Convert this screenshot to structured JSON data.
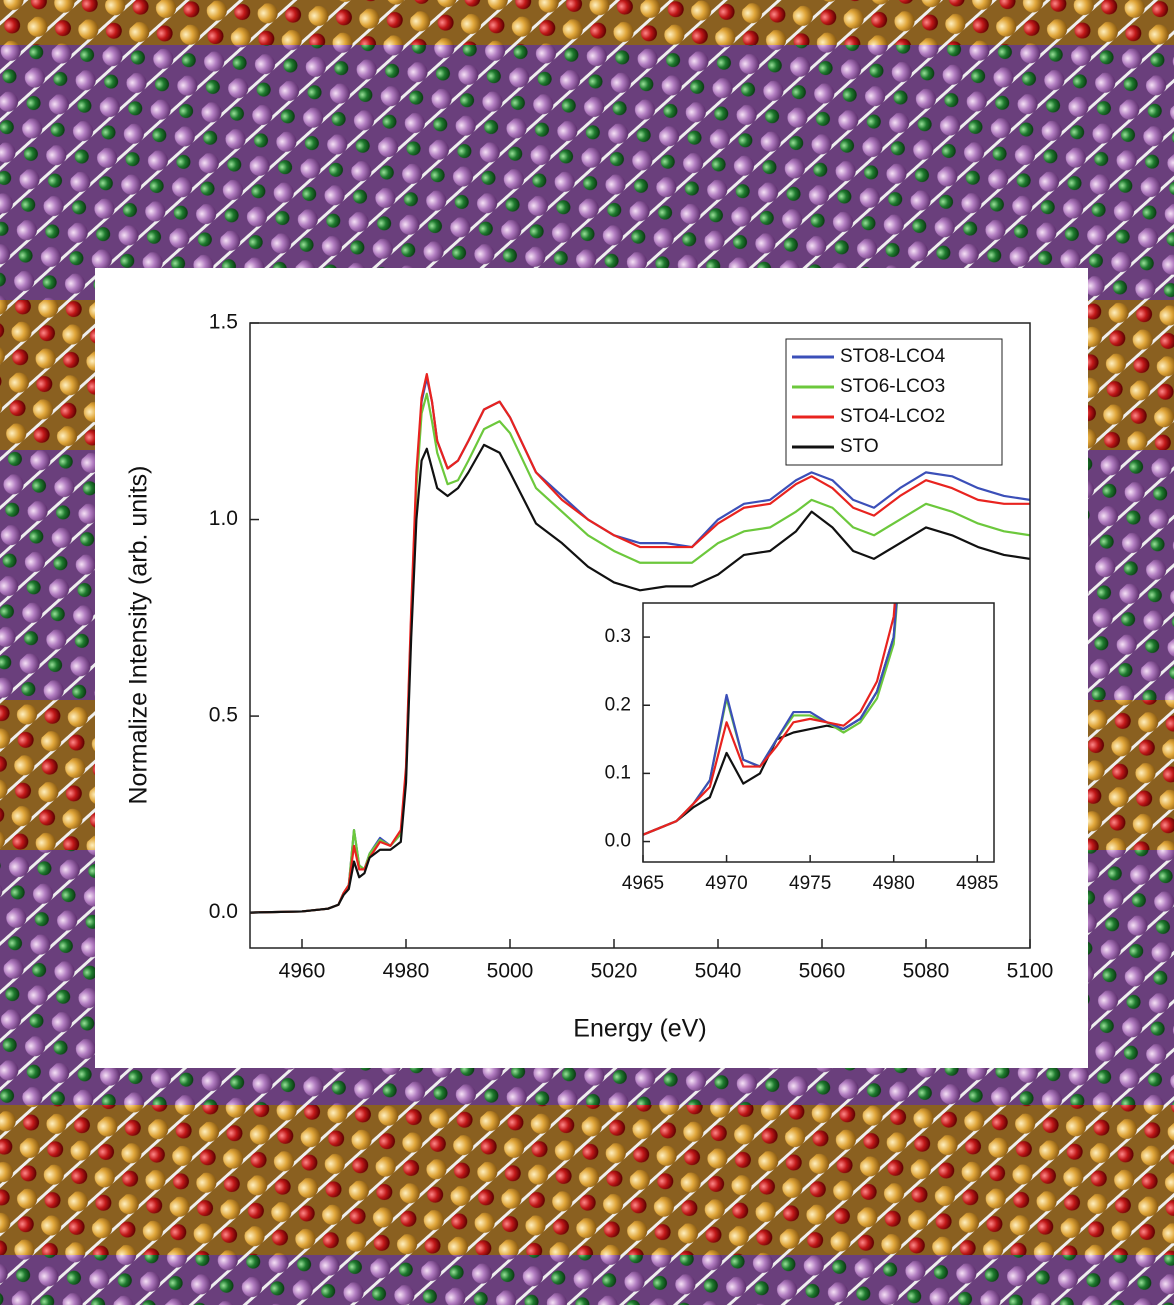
{
  "chart_data": [
    {
      "type": "line",
      "x_label": "Energy (eV)",
      "y_label": "Normalize Intensity (arb. units)",
      "xlim": [
        4950,
        5100
      ],
      "ylim": [
        -0.09,
        1.5
      ],
      "xticks": [
        4960,
        4980,
        5000,
        5020,
        5040,
        5060,
        5080,
        5100
      ],
      "yticks": [
        {
          "value": 0,
          "label": "0.0"
        },
        0.5,
        {
          "value": 1,
          "label": "1.0"
        },
        1.5
      ],
      "legend": "upper right",
      "x": [
        4950,
        4960,
        4965,
        4967,
        4968,
        4969,
        4970,
        4971,
        4972,
        4973,
        4975,
        4977,
        4979,
        4980,
        4981,
        4982,
        4983,
        4984,
        4985,
        4986,
        4988,
        4990,
        4992,
        4995,
        4998,
        5000,
        5005,
        5010,
        5015,
        5020,
        5025,
        5030,
        5035,
        5040,
        5045,
        5050,
        5055,
        5058,
        5062,
        5066,
        5070,
        5075,
        5080,
        5085,
        5090,
        5095,
        5100
      ],
      "series": [
        {
          "name": "STO8-LCO4",
          "color": "#3b4fb8",
          "values": [
            0,
            0.003,
            0.01,
            0.02,
            0.05,
            0.07,
            0.21,
            0.12,
            0.11,
            0.15,
            0.19,
            0.17,
            0.2,
            0.35,
            0.75,
            1.1,
            1.3,
            1.36,
            1.3,
            1.2,
            1.13,
            1.15,
            1.2,
            1.28,
            1.3,
            1.26,
            1.12,
            1.06,
            1.0,
            0.96,
            0.94,
            0.94,
            0.93,
            1.0,
            1.04,
            1.05,
            1.1,
            1.12,
            1.1,
            1.05,
            1.03,
            1.08,
            1.12,
            1.11,
            1.08,
            1.06,
            1.05
          ]
        },
        {
          "name": "STO6-LCO3",
          "color": "#6cc83c",
          "values": [
            0,
            0.003,
            0.01,
            0.02,
            0.05,
            0.07,
            0.21,
            0.12,
            0.11,
            0.15,
            0.185,
            0.17,
            0.2,
            0.35,
            0.74,
            1.08,
            1.27,
            1.32,
            1.25,
            1.17,
            1.09,
            1.1,
            1.15,
            1.23,
            1.25,
            1.22,
            1.08,
            1.02,
            0.96,
            0.92,
            0.89,
            0.89,
            0.89,
            0.94,
            0.97,
            0.98,
            1.02,
            1.05,
            1.03,
            0.98,
            0.96,
            1.0,
            1.04,
            1.02,
            0.99,
            0.97,
            0.96
          ]
        },
        {
          "name": "STO4-LCO2",
          "color": "#e8231f",
          "values": [
            0,
            0.003,
            0.01,
            0.02,
            0.05,
            0.07,
            0.17,
            0.11,
            0.11,
            0.14,
            0.18,
            0.17,
            0.21,
            0.37,
            0.77,
            1.12,
            1.31,
            1.37,
            1.3,
            1.2,
            1.13,
            1.15,
            1.2,
            1.28,
            1.3,
            1.26,
            1.12,
            1.05,
            1.0,
            0.96,
            0.93,
            0.93,
            0.93,
            0.99,
            1.03,
            1.04,
            1.09,
            1.11,
            1.08,
            1.03,
            1.01,
            1.06,
            1.1,
            1.08,
            1.05,
            1.04,
            1.04
          ]
        },
        {
          "name": "STO",
          "color": "#111111",
          "values": [
            0,
            0.003,
            0.01,
            0.02,
            0.045,
            0.06,
            0.13,
            0.09,
            0.1,
            0.14,
            0.16,
            0.16,
            0.18,
            0.33,
            0.7,
            1.0,
            1.15,
            1.18,
            1.13,
            1.08,
            1.06,
            1.08,
            1.12,
            1.19,
            1.17,
            1.12,
            0.99,
            0.94,
            0.88,
            0.84,
            0.82,
            0.83,
            0.83,
            0.86,
            0.91,
            0.92,
            0.97,
            1.02,
            0.98,
            0.92,
            0.9,
            0.94,
            0.98,
            0.96,
            0.93,
            0.91,
            0.9
          ]
        }
      ]
    },
    {
      "type": "line",
      "xlim": [
        4965,
        4986
      ],
      "ylim": [
        -0.03,
        0.35
      ],
      "xticks": [
        4965,
        4970,
        4975,
        4980,
        4985
      ],
      "yticks": [
        {
          "value": 0,
          "label": "0.0"
        },
        0.1,
        0.2,
        0.3
      ],
      "x": [
        4965,
        4966,
        4967,
        4968,
        4969,
        4970,
        4971,
        4972,
        4973,
        4974,
        4975,
        4976,
        4977,
        4978,
        4979,
        4980,
        4981
      ],
      "series": [
        {
          "color": "#111111",
          "values": [
            0.01,
            0.02,
            0.03,
            0.05,
            0.065,
            0.13,
            0.085,
            0.1,
            0.15,
            0.16,
            0.165,
            0.17,
            0.165,
            0.18,
            0.22,
            0.3,
            0.62
          ]
        },
        {
          "color": "#6cc83c",
          "values": [
            0.01,
            0.02,
            0.03,
            0.055,
            0.09,
            0.21,
            0.12,
            0.11,
            0.15,
            0.185,
            0.185,
            0.175,
            0.16,
            0.175,
            0.21,
            0.29,
            0.6
          ]
        },
        {
          "color": "#3b4fb8",
          "values": [
            0.01,
            0.02,
            0.03,
            0.055,
            0.09,
            0.215,
            0.12,
            0.11,
            0.15,
            0.19,
            0.19,
            0.175,
            0.165,
            0.18,
            0.22,
            0.3,
            0.6
          ]
        },
        {
          "color": "#e8231f",
          "values": [
            0.01,
            0.02,
            0.03,
            0.055,
            0.08,
            0.175,
            0.11,
            0.11,
            0.14,
            0.175,
            0.18,
            0.175,
            0.17,
            0.19,
            0.235,
            0.33,
            0.65
          ]
        }
      ]
    }
  ]
}
